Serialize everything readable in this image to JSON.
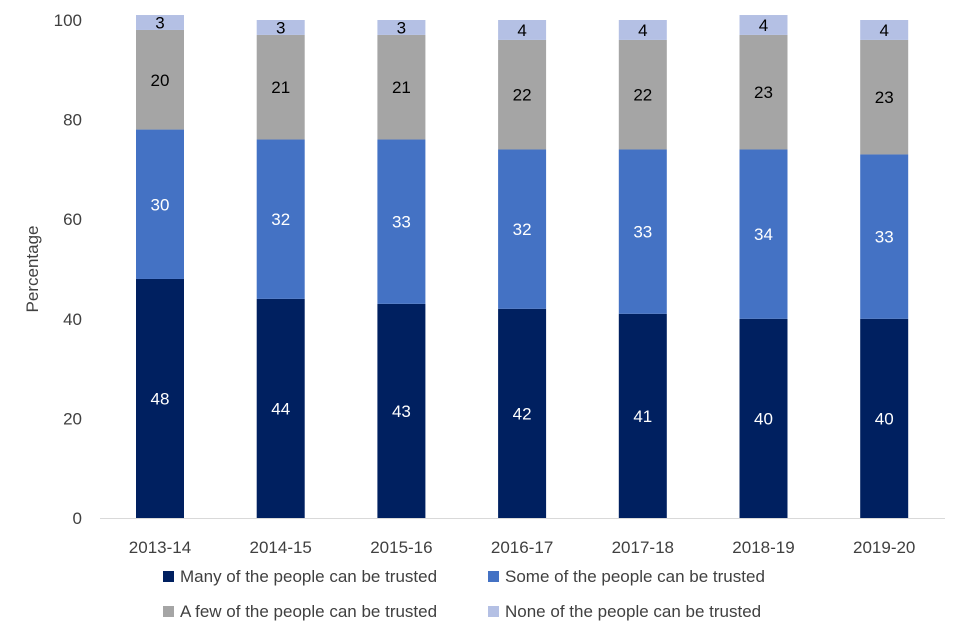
{
  "chart_data": {
    "type": "bar",
    "stacked": true,
    "categories": [
      "2013-14",
      "2014-15",
      "2015-16",
      "2016-17",
      "2017-18",
      "2018-19",
      "2019-20"
    ],
    "series": [
      {
        "name": "Many of the people can be trusted",
        "color": "#002060",
        "label_color": "#ffffff",
        "values": [
          48,
          44,
          43,
          42,
          41,
          40,
          40
        ]
      },
      {
        "name": "Some of the people can be trusted",
        "color": "#4472c4",
        "label_color": "#ffffff",
        "values": [
          30,
          32,
          33,
          32,
          33,
          34,
          33
        ]
      },
      {
        "name": "A few of the people can be trusted",
        "color": "#a5a5a5",
        "label_color": "#000000",
        "values": [
          20,
          21,
          21,
          22,
          22,
          23,
          23
        ]
      },
      {
        "name": "None of the people can be trusted",
        "color": "#b4c0e4",
        "label_color": "#000000",
        "values": [
          3,
          3,
          3,
          4,
          4,
          4,
          4
        ]
      }
    ],
    "xlabel": "",
    "ylabel": "Percentage",
    "ylim": [
      0,
      100
    ],
    "yticks": [
      0,
      20,
      40,
      60,
      80,
      100
    ],
    "grid": false,
    "legend_position": "bottom"
  }
}
